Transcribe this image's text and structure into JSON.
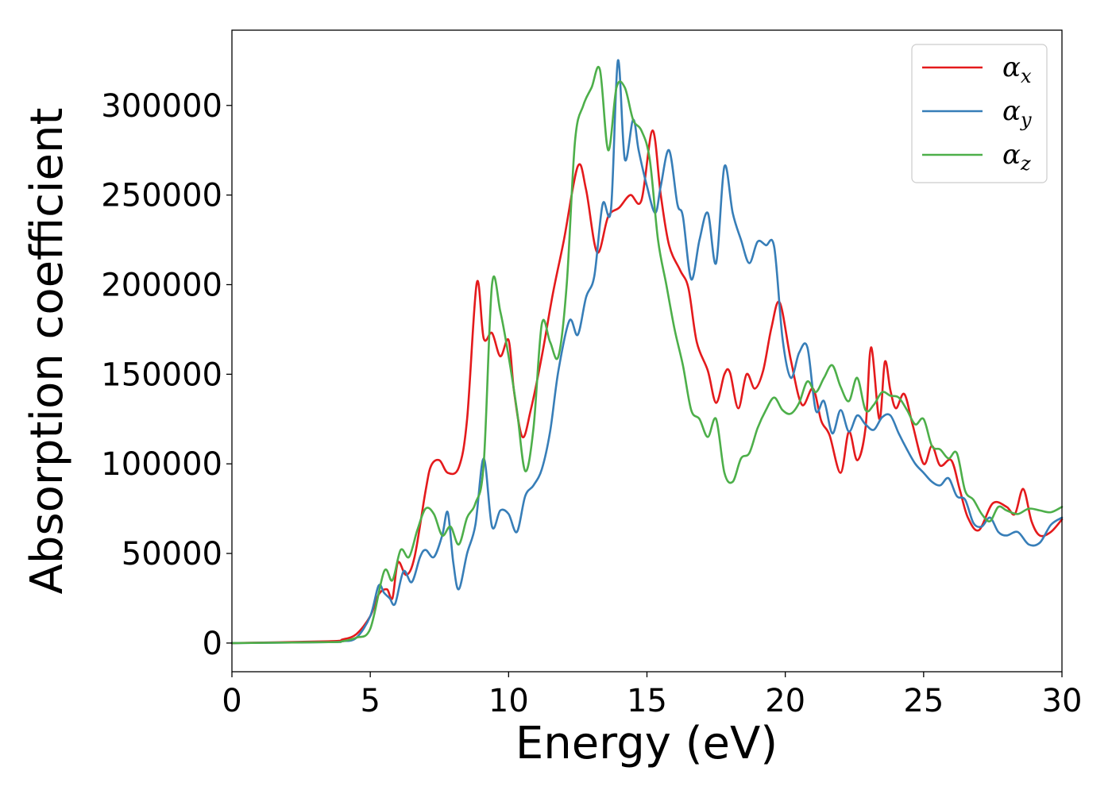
{
  "chart_data": {
    "type": "line",
    "xlabel": "Energy (eV)",
    "ylabel": "Absorption coefficient",
    "xlim": [
      0,
      30
    ],
    "ylim": [
      -16000,
      342000
    ],
    "xticks": [
      0,
      5,
      10,
      15,
      20,
      25,
      30
    ],
    "yticks": [
      0,
      50000,
      100000,
      150000,
      200000,
      250000,
      300000
    ],
    "grid": false,
    "legend_position": "top-right",
    "series": [
      {
        "name": "α_x",
        "label_main": "α",
        "label_sub": "x",
        "color": "#e41a1c",
        "x": [
          0,
          3.5,
          4,
          4.5,
          5,
          5.3,
          5.6,
          5.8,
          6,
          6.3,
          6.6,
          7,
          7.2,
          7.5,
          7.8,
          8.2,
          8.5,
          8.85,
          9.1,
          9.4,
          9.7,
          10,
          10.2,
          10.5,
          10.8,
          11.2,
          11.6,
          12,
          12.5,
          12.8,
          13.2,
          13.6,
          14,
          14.4,
          14.8,
          15.2,
          15.5,
          15.8,
          16.2,
          16.5,
          16.8,
          17.2,
          17.5,
          17.8,
          18,
          18.3,
          18.6,
          18.9,
          19.2,
          19.5,
          19.8,
          20.2,
          20.6,
          21,
          21.3,
          21.6,
          22,
          22.3,
          22.6,
          22.9,
          23.1,
          23.4,
          23.6,
          23.8,
          24,
          24.3,
          24.6,
          25,
          25.3,
          25.6,
          26,
          26.3,
          26.6,
          27,
          27.5,
          28,
          28.3,
          28.6,
          28.9,
          29.2,
          29.6,
          30
        ],
        "y": [
          0,
          1000,
          2000,
          5000,
          15000,
          27000,
          30000,
          25000,
          45000,
          38000,
          48000,
          85000,
          99000,
          102000,
          95000,
          98000,
          125000,
          201000,
          170000,
          173000,
          160000,
          169000,
          140000,
          115000,
          130000,
          160000,
          195000,
          225000,
          266000,
          253000,
          218000,
          238000,
          243000,
          250000,
          247000,
          286000,
          250000,
          222000,
          208000,
          198000,
          168000,
          152000,
          134000,
          150000,
          151000,
          131000,
          150000,
          142000,
          152000,
          176000,
          190000,
          158000,
          133000,
          142000,
          124000,
          116000,
          95000,
          118000,
          102000,
          120000,
          165000,
          125000,
          157000,
          141000,
          131000,
          139000,
          122000,
          100000,
          110000,
          99000,
          102000,
          86000,
          70000,
          63000,
          78000,
          76000,
          72000,
          86000,
          68000,
          60000,
          62000,
          69000
        ]
      },
      {
        "name": "α_y",
        "label_main": "α",
        "label_sub": "y",
        "color": "#377eb8",
        "x": [
          0,
          3.5,
          4,
          4.5,
          5,
          5.3,
          5.5,
          5.7,
          5.9,
          6.2,
          6.5,
          6.8,
          7,
          7.3,
          7.6,
          7.8,
          8,
          8.2,
          8.5,
          8.8,
          9.1,
          9.4,
          9.7,
          10,
          10.3,
          10.6,
          10.9,
          11.2,
          11.5,
          11.8,
          12.2,
          12.5,
          12.8,
          13.1,
          13.4,
          13.7,
          13.95,
          14.2,
          14.5,
          14.7,
          15,
          15.3,
          15.5,
          15.8,
          16.1,
          16.3,
          16.6,
          16.9,
          17.2,
          17.5,
          17.8,
          18.1,
          18.4,
          18.7,
          19,
          19.3,
          19.6,
          19.9,
          20.2,
          20.5,
          20.8,
          21.1,
          21.4,
          21.7,
          22,
          22.3,
          22.6,
          22.9,
          23.2,
          23.5,
          23.8,
          24.1,
          24.4,
          24.7,
          25,
          25.3,
          25.6,
          25.9,
          26.2,
          26.5,
          26.8,
          27.1,
          27.4,
          27.7,
          28,
          28.4,
          28.8,
          29.2,
          29.6,
          30
        ],
        "y": [
          0,
          500,
          1000,
          3000,
          15000,
          32000,
          28000,
          25000,
          22000,
          40000,
          34000,
          48000,
          52000,
          48000,
          60000,
          73000,
          45000,
          30000,
          50000,
          66000,
          103000,
          65000,
          74000,
          72000,
          62000,
          82000,
          88000,
          97000,
          118000,
          152000,
          180000,
          172000,
          193000,
          205000,
          245000,
          242000,
          325000,
          270000,
          292000,
          275000,
          255000,
          240000,
          255000,
          275000,
          245000,
          238000,
          203000,
          225000,
          240000,
          212000,
          266000,
          240000,
          225000,
          212000,
          224000,
          222000,
          221000,
          170000,
          148000,
          162000,
          165000,
          130000,
          135000,
          117000,
          130000,
          118000,
          127000,
          122000,
          119000,
          126000,
          127000,
          117000,
          108000,
          100000,
          95000,
          90000,
          88000,
          92000,
          82000,
          80000,
          67000,
          65000,
          70000,
          62000,
          60000,
          62000,
          55000,
          56000,
          66000,
          70000
        ]
      },
      {
        "name": "α_z",
        "label_main": "α",
        "label_sub": "z",
        "color": "#4daf4a",
        "x": [
          0,
          3.5,
          4,
          4.5,
          5,
          5.5,
          5.8,
          6.1,
          6.4,
          6.7,
          7,
          7.3,
          7.6,
          7.9,
          8.2,
          8.5,
          8.8,
          9.1,
          9.4,
          9.7,
          10,
          10.3,
          10.6,
          10.9,
          11.2,
          11.5,
          11.8,
          12.1,
          12.4,
          12.7,
          13,
          13.3,
          13.6,
          13.9,
          14.2,
          14.5,
          14.8,
          15.1,
          15.4,
          15.7,
          16,
          16.3,
          16.6,
          16.9,
          17.2,
          17.5,
          17.8,
          18.1,
          18.4,
          18.7,
          19,
          19.3,
          19.6,
          19.9,
          20.2,
          20.5,
          20.8,
          21.1,
          21.4,
          21.7,
          22,
          22.3,
          22.6,
          22.9,
          23.2,
          23.5,
          23.8,
          24.1,
          24.4,
          24.7,
          25,
          25.3,
          25.6,
          25.9,
          26.2,
          26.5,
          26.8,
          27.1,
          27.4,
          27.7,
          28,
          28.4,
          28.8,
          29.2,
          29.6,
          30
        ],
        "y": [
          0,
          500,
          1000,
          3000,
          8000,
          40000,
          35000,
          52000,
          48000,
          63000,
          75000,
          72000,
          60000,
          65000,
          55000,
          70000,
          78000,
          100000,
          200000,
          185000,
          160000,
          130000,
          96000,
          120000,
          178000,
          168000,
          160000,
          200000,
          280000,
          300000,
          310000,
          320000,
          275000,
          310000,
          310000,
          292000,
          286000,
          270000,
          225000,
          200000,
          175000,
          155000,
          130000,
          125000,
          115000,
          125000,
          95000,
          90000,
          103000,
          106000,
          120000,
          130000,
          137000,
          130000,
          128000,
          134000,
          146000,
          140000,
          148000,
          155000,
          143000,
          135000,
          148000,
          130000,
          133000,
          140000,
          138000,
          137000,
          130000,
          122000,
          125000,
          110000,
          108000,
          103000,
          106000,
          85000,
          80000,
          72000,
          68000,
          76000,
          74000,
          72000,
          75000,
          74000,
          73000,
          76000
        ]
      }
    ]
  }
}
